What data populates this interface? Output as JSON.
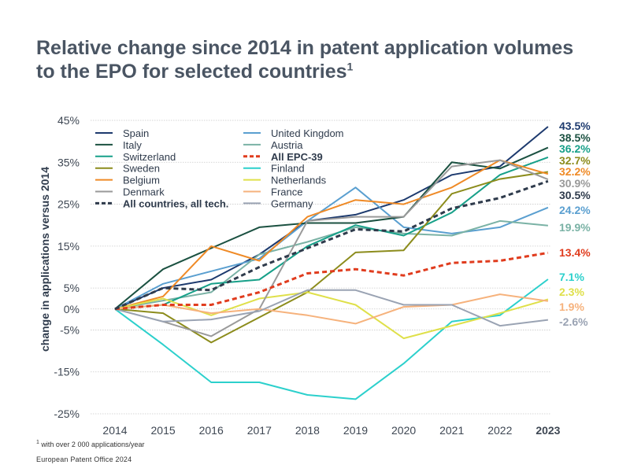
{
  "title": "Relative change since 2014 in patent application volumes to the EPO for selected countries",
  "title_sup": "1",
  "footnote_mark": "1",
  "footnote": "with over 2 000 applications/year",
  "source": "European Patent Office 2024",
  "chart_data": {
    "type": "line",
    "ylabel": "change in applications versus 2014",
    "xlabel": "",
    "x": [
      "2014",
      "2015",
      "2016",
      "2017",
      "2018",
      "2019",
      "2020",
      "2021",
      "2022",
      "2023"
    ],
    "ylim": [
      -25,
      45
    ],
    "yticks": [
      45,
      35,
      25,
      15,
      5,
      0,
      -5,
      -15,
      -25
    ],
    "ytick_labels": [
      "45%",
      "35%",
      "25%",
      "15%",
      "5%",
      "0%",
      "-5%",
      "-15%",
      "-25%"
    ],
    "grid": true,
    "legend_position": "top-left",
    "series": [
      {
        "name": "Spain",
        "color": "#1d3a6e",
        "dash": false,
        "width": 2,
        "values": [
          0,
          5,
          7,
          13,
          21,
          22.5,
          26,
          32,
          34,
          43.5
        ],
        "end_label": "43.5%"
      },
      {
        "name": "United Kingdom",
        "color": "#5a9fd0",
        "dash": false,
        "width": 2,
        "values": [
          0,
          6,
          9,
          12,
          21,
          29,
          19.5,
          18,
          19.5,
          24.2
        ],
        "end_label": "24.2%"
      },
      {
        "name": "Italy",
        "color": "#1b5141",
        "dash": false,
        "width": 2,
        "values": [
          0,
          9.5,
          14.5,
          19.5,
          20.5,
          20.5,
          22,
          35,
          33.5,
          38.5
        ],
        "end_label": "38.5%"
      },
      {
        "name": "Austria",
        "color": "#7ab2a5",
        "dash": false,
        "width": 2,
        "values": [
          0,
          2,
          4,
          13,
          16,
          19.5,
          18,
          17.5,
          21,
          19.9
        ],
        "end_label": "19.9%"
      },
      {
        "name": "Switzerland",
        "color": "#17a089",
        "dash": false,
        "width": 2,
        "values": [
          0,
          1,
          6,
          7,
          15,
          20,
          17.5,
          23,
          32,
          36.2
        ],
        "end_label": "36.2%"
      },
      {
        "name": "All EPC-39",
        "color": "#e03c1e",
        "dash": true,
        "width": 3,
        "bold": true,
        "values": [
          0,
          1,
          1,
          4,
          8.5,
          9.5,
          8,
          11,
          11.5,
          13.4
        ],
        "end_label": "13.4%"
      },
      {
        "name": "Sweden",
        "color": "#8c8c1c",
        "dash": false,
        "width": 2,
        "values": [
          0,
          -1,
          -8,
          -2,
          4,
          13.5,
          14,
          27.5,
          31,
          32.7
        ],
        "end_label": "32.7%"
      },
      {
        "name": "Finland",
        "color": "#2cd0cc",
        "dash": false,
        "width": 2,
        "values": [
          0,
          -8.5,
          -17.5,
          -17.5,
          -20.5,
          -21.5,
          -13,
          -3,
          -1.5,
          7.1
        ],
        "end_label": "7.1%"
      },
      {
        "name": "Belgium",
        "color": "#ef8a26",
        "dash": false,
        "width": 2,
        "values": [
          0,
          3,
          15,
          11.5,
          22,
          26,
          25,
          29,
          35.5,
          32.2
        ],
        "end_label": "32.2%"
      },
      {
        "name": "Netherlands",
        "color": "#dfe04a",
        "dash": false,
        "width": 2,
        "values": [
          0,
          2.5,
          -1.5,
          2.5,
          4,
          1,
          -7,
          -4,
          -1,
          2.3
        ],
        "end_label": "2.3%"
      },
      {
        "name": "Denmark",
        "color": "#9a9a9a",
        "dash": false,
        "width": 2,
        "values": [
          0,
          -3,
          -6.5,
          0,
          21,
          22,
          22,
          34,
          35.5,
          30.9
        ],
        "end_label": "30.9%"
      },
      {
        "name": "France",
        "color": "#f6b27c",
        "dash": false,
        "width": 2,
        "values": [
          0,
          1,
          -1,
          0,
          -1.5,
          -3.5,
          0.5,
          1,
          3.5,
          1.9
        ],
        "end_label": "1.9%"
      },
      {
        "name": "All countries, all tech.",
        "color": "#2f3b4c",
        "dash": true,
        "width": 3,
        "bold": true,
        "values": [
          0,
          5,
          4.5,
          10,
          14.5,
          19,
          18.5,
          24,
          26.5,
          30.5
        ],
        "end_label": "30.5%"
      },
      {
        "name": "Germany",
        "color": "#9aa3b3",
        "dash": false,
        "width": 2,
        "values": [
          0,
          -3,
          -2.5,
          -0.5,
          4.5,
          4.5,
          1,
          1,
          -4,
          -2.6
        ],
        "end_label": "-2.6%"
      }
    ],
    "end_label_order": [
      "Spain",
      "Italy",
      "Switzerland",
      "Sweden",
      "Belgium",
      "Denmark",
      "All countries, all tech.",
      "United Kingdom",
      "Austria",
      "All EPC-39",
      "Finland",
      "Netherlands",
      "France",
      "Germany"
    ]
  }
}
